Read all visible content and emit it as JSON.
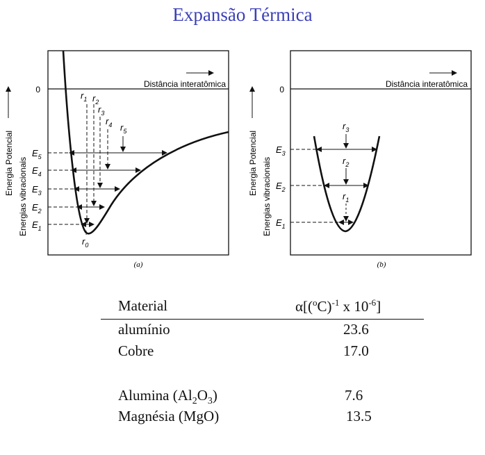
{
  "title": "Expansão Térmica",
  "diagram": {
    "panel_a": {
      "y_axis_label_line1": "Energia Potencial",
      "y_axis_label_line2": "Energias vibracionais",
      "x_axis_label": "Distância interatômica",
      "zero_label": "0",
      "energy_labels": [
        "E5",
        "E4",
        "E3",
        "E2",
        "E1"
      ],
      "r_labels": [
        "r1",
        "r2",
        "r3",
        "r4",
        "r5"
      ],
      "r0_label": "r0",
      "caption": "(a)"
    },
    "panel_b": {
      "y_axis_label_line1": "Energia Potencial",
      "y_axis_label_line2": "Energias vibracionais",
      "x_axis_label": "Distância interatômica",
      "zero_label": "0",
      "energy_labels": [
        "E3",
        "E2",
        "E1"
      ],
      "r_labels": [
        "r3",
        "r2",
        "r1"
      ],
      "caption": "(b)"
    }
  },
  "table": {
    "headers": {
      "material": "Material",
      "alpha": "α[(oC)-1 x 10-6]"
    },
    "rows": [
      {
        "material": "alumínio",
        "value": "23.6"
      },
      {
        "material": "Cobre",
        "value": "17.0"
      },
      {
        "material": "Alumina (Al2O3)",
        "value": "7.6"
      },
      {
        "material": "Magnésia (MgO)",
        "value": "13.5"
      }
    ]
  }
}
